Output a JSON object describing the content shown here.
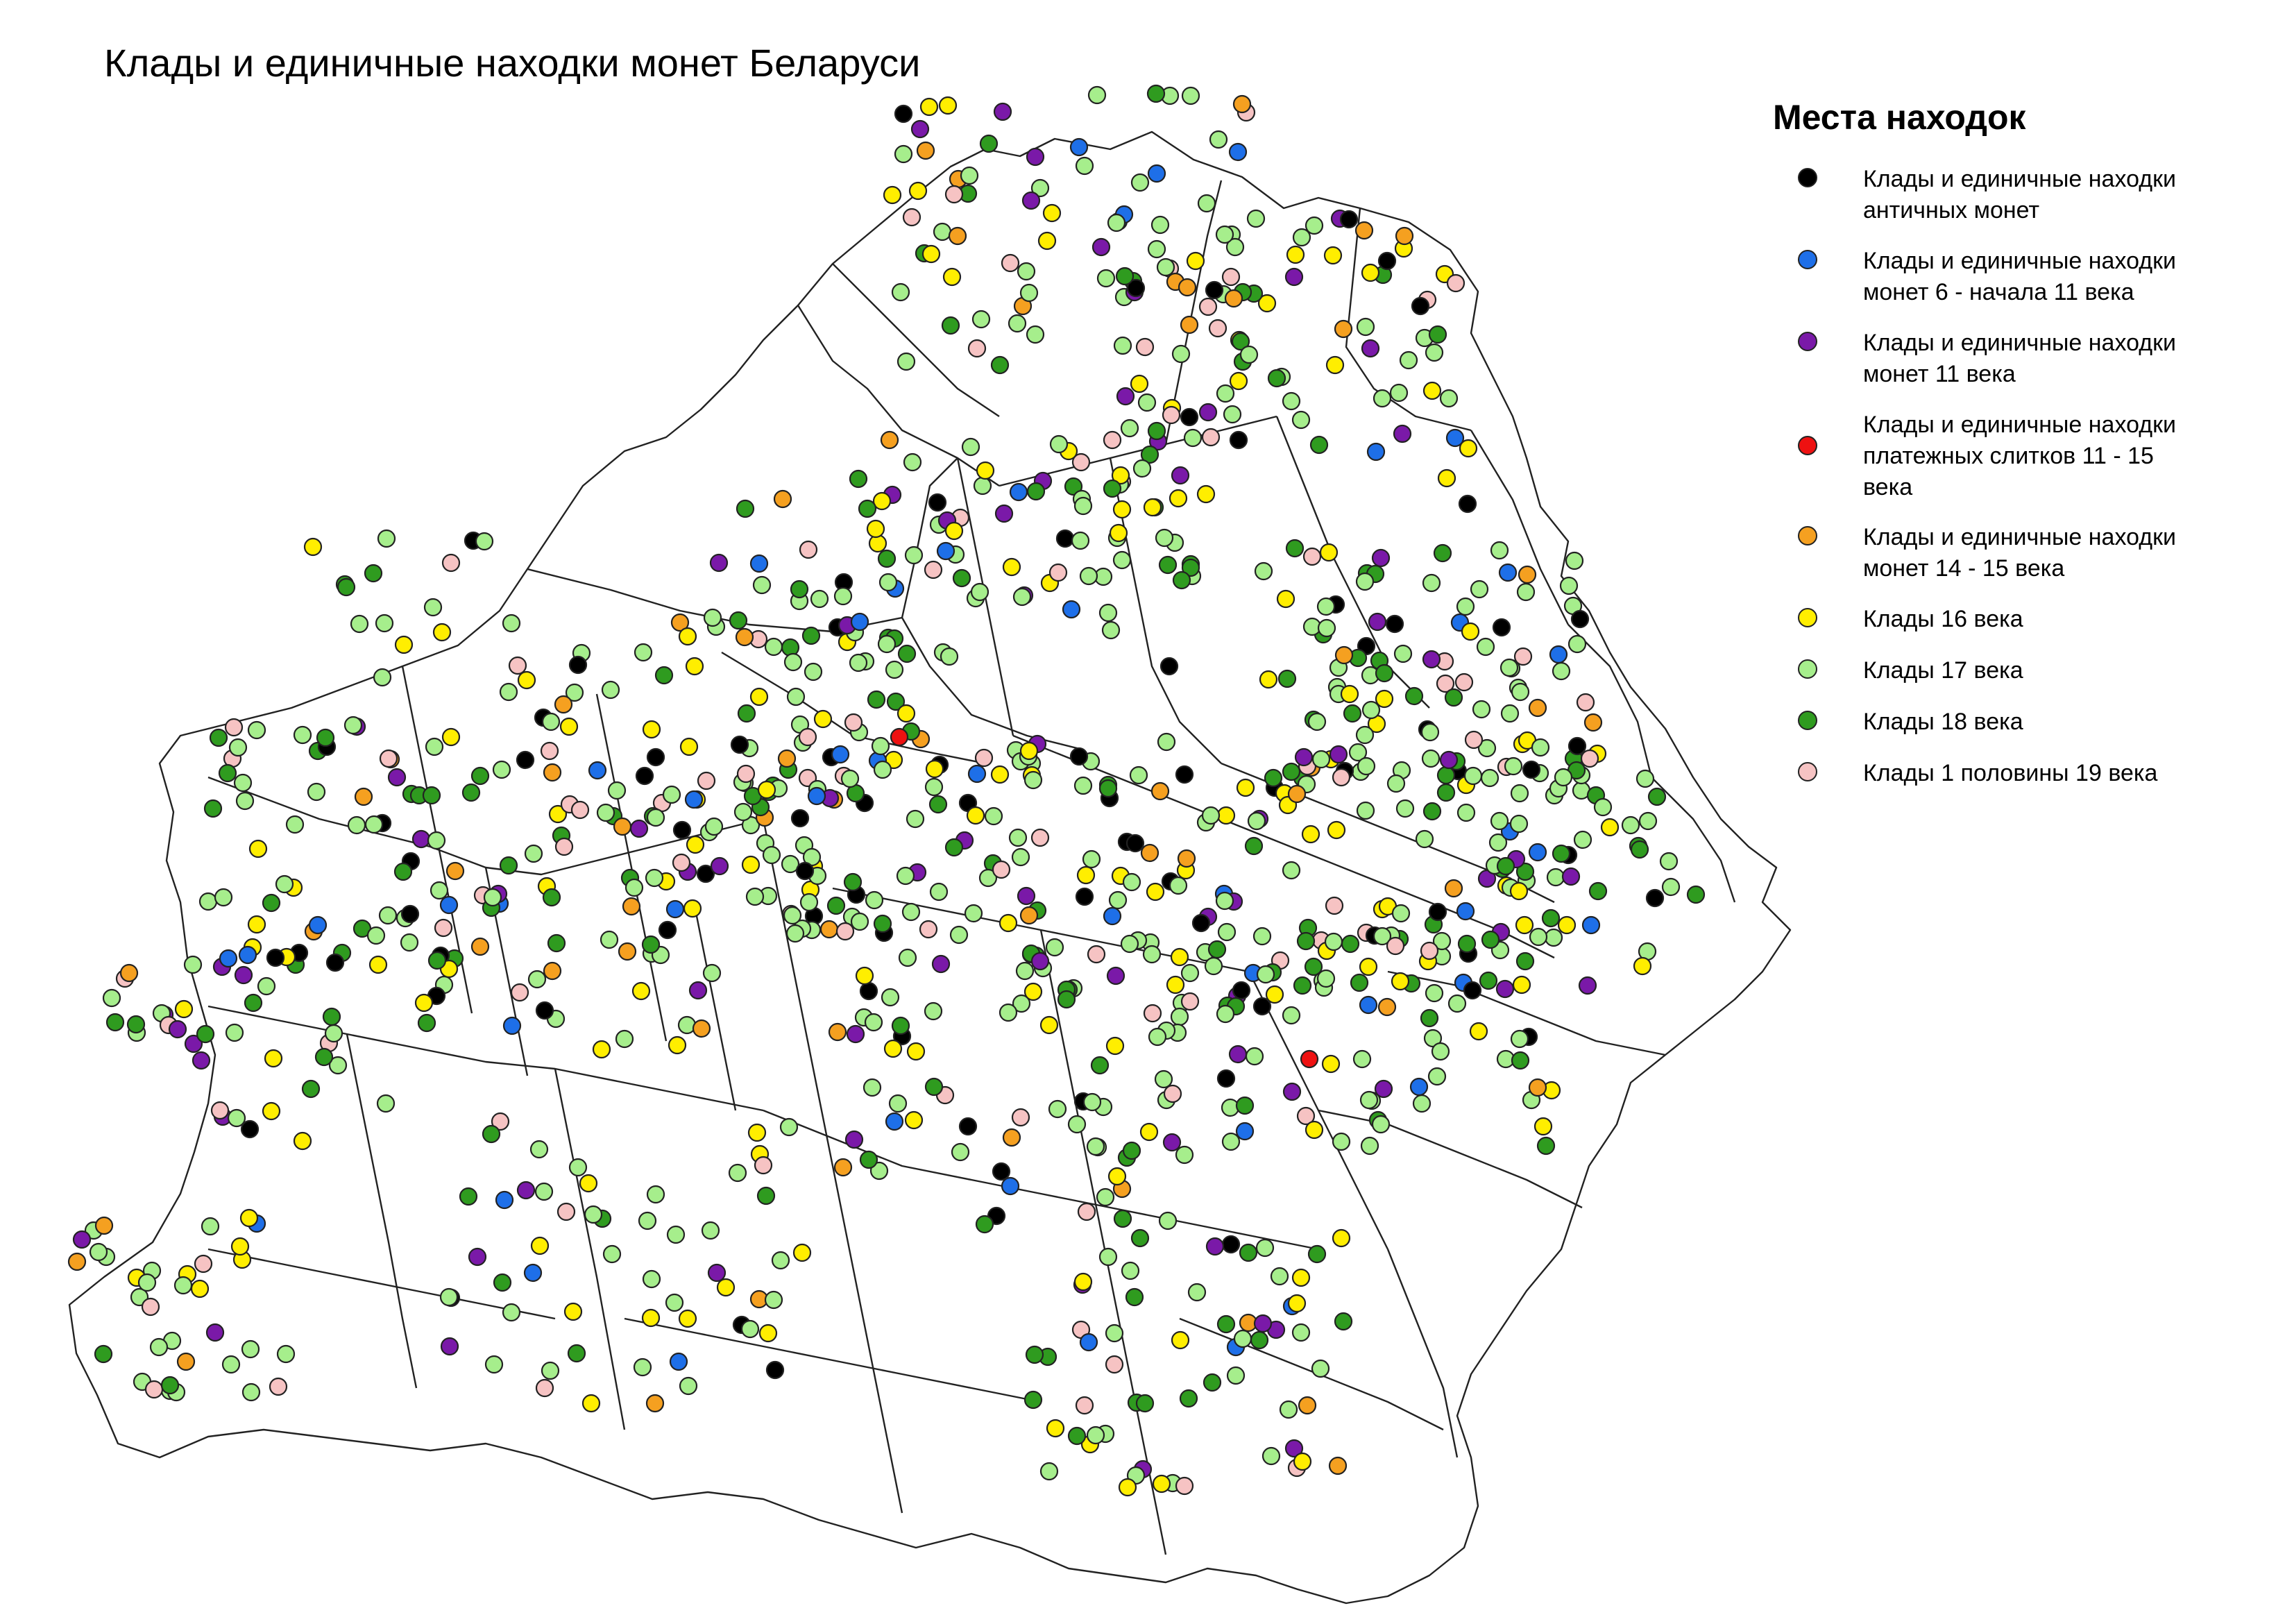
{
  "title": "Клады и единичные находки монет Беларуси",
  "legend": {
    "title": "Места находок",
    "items": [
      {
        "id": "ancient",
        "label": "Клады и единичные находки\nантичных монет",
        "color": "#000000"
      },
      {
        "id": "c6_11",
        "label": "Клады и единичные находки\nмонет 6 - начала 11 века",
        "color": "#1e6fe8"
      },
      {
        "id": "c11",
        "label": "Клады и единичные находки\nмонет 11 века",
        "color": "#7a19a8"
      },
      {
        "id": "ingots",
        "label": "Клады и единичные находки\nплатежных слитков 11 -  15\nвека",
        "color": "#ee1111"
      },
      {
        "id": "c14_15",
        "label": "Клады и единичные находки\nмонет 14 -  15 века",
        "color": "#f5a020"
      },
      {
        "id": "c16",
        "label": "Клады 16 века",
        "color": "#ffee00"
      },
      {
        "id": "c17",
        "label": "Клады 17 века",
        "color": "#a6ee8c"
      },
      {
        "id": "c18",
        "label": "Клады 18 века",
        "color": "#2f9b1f"
      },
      {
        "id": "c19",
        "label": "Клады 1 половины 19 века",
        "color": "#f6c3c3"
      }
    ]
  }
}
